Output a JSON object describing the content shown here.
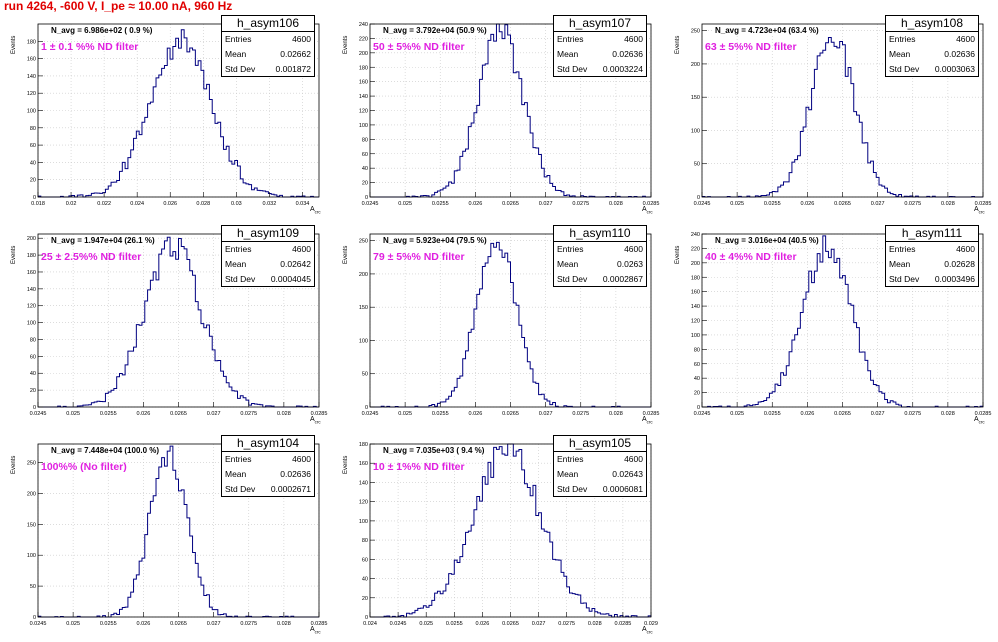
{
  "page": {
    "title": "run 4264,  -600 V, I_pe ≈ 10.00 nA, 960 Hz"
  },
  "common": {
    "ylabel": "Events",
    "xlabel": "A",
    "xlabel_sub": "crc"
  },
  "chart_data": [
    {
      "type": "bar",
      "name": "h_asym106",
      "stats": {
        "entries": "4600",
        "mean": "0.02662",
        "std": "0.001872"
      },
      "n_avg": "N_avg = 6.986e+02 ( 0.9 %)",
      "filter": "1 ± 0.1 %% ND filter",
      "xlim": [
        0.018,
        0.035
      ],
      "ylim": [
        0,
        200
      ],
      "xticks": [
        "0.018",
        "0.02",
        "0.022",
        "0.024",
        "0.026",
        "0.028",
        "0.03",
        "0.032",
        "0.034"
      ],
      "yticks": [
        "0",
        "20",
        "40",
        "60",
        "80",
        "100",
        "120",
        "140",
        "160",
        "180"
      ],
      "mean": 0.02662,
      "sigma": 0.001872,
      "peak": 180,
      "seed": 106
    },
    {
      "type": "bar",
      "name": "h_asym107",
      "stats": {
        "entries": "4600",
        "mean": "0.02636",
        "std": "0.0003224"
      },
      "n_avg": "N_avg = 3.792e+04 (50.9 %)",
      "filter": "50 ± 5%% ND filter",
      "xlim": [
        0.0245,
        0.0285
      ],
      "ylim": [
        0,
        240
      ],
      "xticks": [
        "0.0245",
        "0.025",
        "0.0255",
        "0.026",
        "0.0265",
        "0.027",
        "0.0275",
        "0.028",
        "0.0285"
      ],
      "yticks": [
        "0",
        "20",
        "40",
        "60",
        "80",
        "100",
        "120",
        "140",
        "160",
        "180",
        "200",
        "220",
        "240"
      ],
      "mean": 0.02636,
      "sigma": 0.0003224,
      "peak": 228,
      "seed": 107
    },
    {
      "type": "bar",
      "name": "h_asym108",
      "stats": {
        "entries": "4600",
        "mean": "0.02636",
        "std": "0.0003063"
      },
      "n_avg": "N_avg = 4.723e+04 (63.4 %)",
      "filter": "63 ± 5%% ND filter",
      "xlim": [
        0.0245,
        0.0285
      ],
      "ylim": [
        0,
        260
      ],
      "xticks": [
        "0.0245",
        "0.025",
        "0.0255",
        "0.026",
        "0.0265",
        "0.027",
        "0.0275",
        "0.028",
        "0.0285"
      ],
      "yticks": [
        "0",
        "50",
        "100",
        "150",
        "200",
        "250"
      ],
      "mean": 0.02636,
      "sigma": 0.0003063,
      "peak": 245,
      "seed": 108
    },
    {
      "type": "bar",
      "name": "h_asym109",
      "stats": {
        "entries": "4600",
        "mean": "0.02642",
        "std": "0.0004045"
      },
      "n_avg": "N_avg = 1.947e+04 (26.1 %)",
      "filter": "25 ± 2.5%% ND filter",
      "xlim": [
        0.0245,
        0.0285
      ],
      "ylim": [
        0,
        205
      ],
      "xticks": [
        "0.0245",
        "0.025",
        "0.0255",
        "0.026",
        "0.0265",
        "0.027",
        "0.0275",
        "0.028",
        "0.0285"
      ],
      "yticks": [
        "0",
        "20",
        "40",
        "60",
        "80",
        "100",
        "120",
        "140",
        "160",
        "180",
        "200"
      ],
      "mean": 0.02642,
      "sigma": 0.0004045,
      "peak": 190,
      "seed": 109
    },
    {
      "type": "bar",
      "name": "h_asym110",
      "stats": {
        "entries": "4600",
        "mean": "0.0263",
        "std": "0.0002867"
      },
      "n_avg": "N_avg = 5.923e+04 (79.5 %)",
      "filter": "79 ± 5%% ND filter",
      "xlim": [
        0.0245,
        0.0285
      ],
      "ylim": [
        0,
        260
      ],
      "xticks": [
        "0.0245",
        "0.025",
        "0.0255",
        "0.026",
        "0.0265",
        "0.027",
        "0.0275",
        "0.028",
        "0.0285"
      ],
      "yticks": [
        "0",
        "50",
        "100",
        "150",
        "200",
        "250"
      ],
      "mean": 0.0263,
      "sigma": 0.0002867,
      "peak": 245,
      "seed": 110
    },
    {
      "type": "bar",
      "name": "h_asym111",
      "stats": {
        "entries": "4600",
        "mean": "0.02628",
        "std": "0.0003496"
      },
      "n_avg": "N_avg = 3.016e+04 (40.5 %)",
      "filter": "40 ± 4%% ND filter",
      "xlim": [
        0.0245,
        0.0285
      ],
      "ylim": [
        0,
        240
      ],
      "xticks": [
        "0.0245",
        "0.025",
        "0.0255",
        "0.026",
        "0.0265",
        "0.027",
        "0.0275",
        "0.028",
        "0.0285"
      ],
      "yticks": [
        "0",
        "20",
        "40",
        "60",
        "80",
        "100",
        "120",
        "140",
        "160",
        "180",
        "200",
        "220",
        "240"
      ],
      "mean": 0.02628,
      "sigma": 0.0003496,
      "peak": 222,
      "seed": 111
    },
    {
      "type": "bar",
      "name": "h_asym104",
      "stats": {
        "entries": "4600",
        "mean": "0.02636",
        "std": "0.0002671"
      },
      "n_avg": "N_avg = 7.448e+04 (100.0 %)",
      "filter": "100%% (No filter)",
      "xlim": [
        0.0245,
        0.0285
      ],
      "ylim": [
        0,
        280
      ],
      "xticks": [
        "0.0245",
        "0.025",
        "0.0255",
        "0.026",
        "0.0265",
        "0.027",
        "0.0275",
        "0.028",
        "0.0285"
      ],
      "yticks": [
        "0",
        "50",
        "100",
        "150",
        "200",
        "250"
      ],
      "mean": 0.02636,
      "sigma": 0.0002671,
      "peak": 265,
      "seed": 104
    },
    {
      "type": "bar",
      "name": "h_asym105",
      "stats": {
        "entries": "4600",
        "mean": "0.02643",
        "std": "0.0006081"
      },
      "n_avg": "N_avg = 7.035e+03 ( 9.4 %)",
      "filter": "10 ± 1%% ND filter",
      "xlim": [
        0.024,
        0.029
      ],
      "ylim": [
        0,
        180
      ],
      "xticks": [
        "0.024",
        "0.0245",
        "0.025",
        "0.0255",
        "0.026",
        "0.0265",
        "0.027",
        "0.0275",
        "0.028",
        "0.0285",
        "0.029"
      ],
      "yticks": [
        "0",
        "20",
        "40",
        "60",
        "80",
        "100",
        "120",
        "140",
        "160",
        "180"
      ],
      "mean": 0.02643,
      "sigma": 0.0006081,
      "peak": 175,
      "seed": 105
    }
  ]
}
